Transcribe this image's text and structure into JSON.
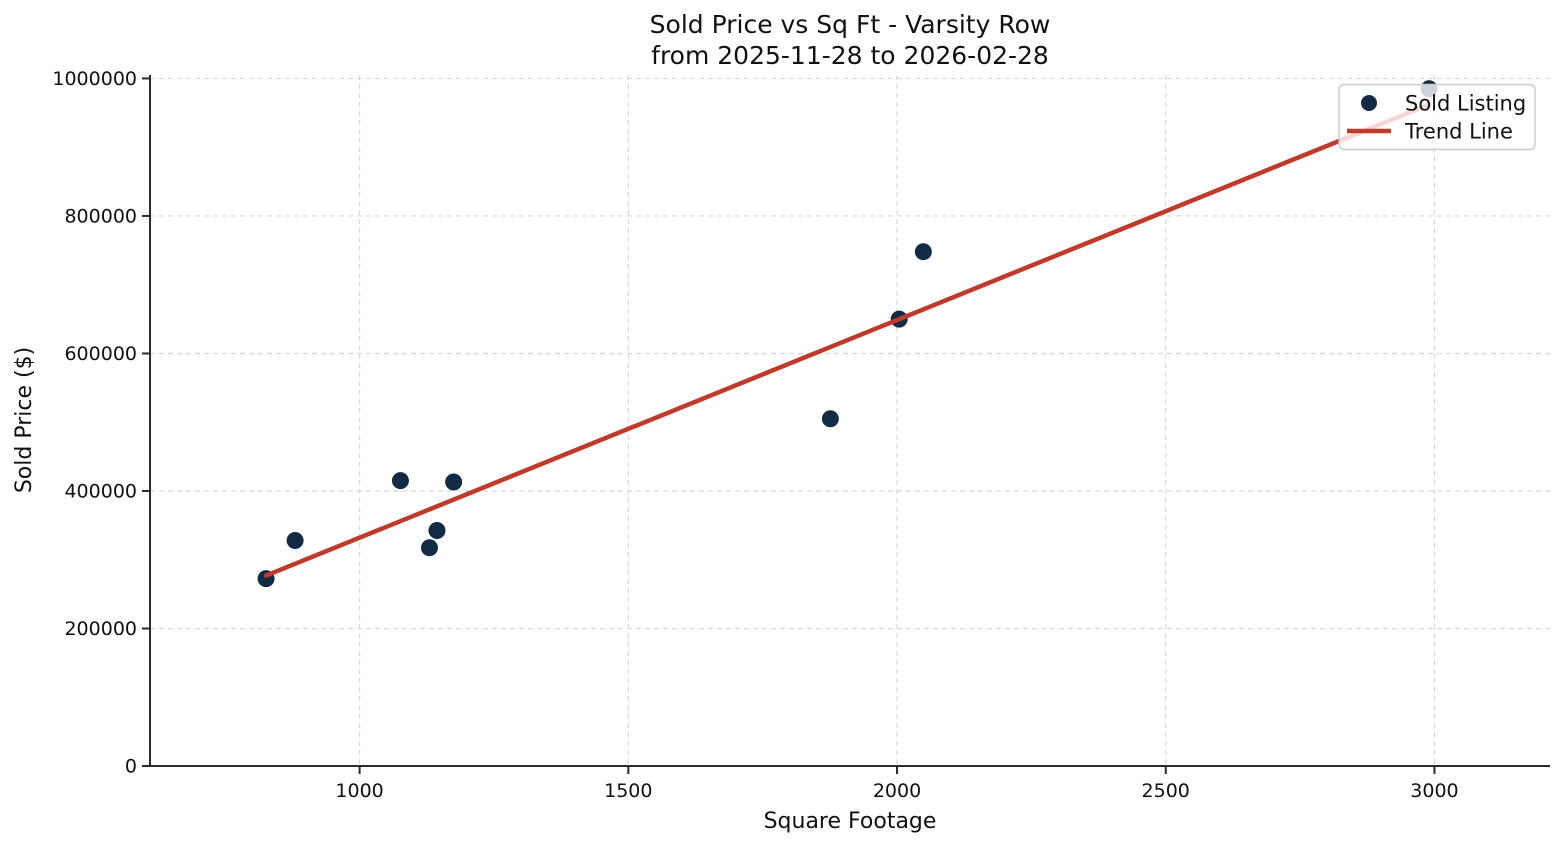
{
  "title": {
    "line1": "Sold Price vs Sq Ft - Varsity Row",
    "line2": "from 2025-11-28 to 2026-02-28"
  },
  "chart_data": {
    "type": "scatter",
    "title": "Sold Price vs Sq Ft - Varsity Row\nfrom 2025-11-28 to 2026-02-28",
    "xlabel": "Square Footage",
    "ylabel": "Sold Price ($)",
    "xlim": [
      610,
      3215
    ],
    "ylim": [
      0,
      1005000
    ],
    "x_ticks": [
      1000,
      1500,
      2000,
      2500,
      3000
    ],
    "y_ticks": [
      0,
      200000,
      400000,
      600000,
      800000,
      1000000
    ],
    "grid": true,
    "legend_position": "upper right",
    "series": [
      {
        "name": "Sold Listing",
        "type": "scatter",
        "color": "#122b45",
        "points": [
          [
            826,
            272500
          ],
          [
            880,
            328000
          ],
          [
            1076,
            415000
          ],
          [
            1130,
            317500
          ],
          [
            1144,
            342500
          ],
          [
            1175,
            413000
          ],
          [
            1876,
            505000
          ],
          [
            2004,
            650000
          ],
          [
            2049,
            748000
          ],
          [
            2990,
            985000
          ]
        ]
      },
      {
        "name": "Trend Line",
        "type": "line",
        "color": "#c03a2b",
        "points": [
          [
            826,
            277000
          ],
          [
            2990,
            962000
          ]
        ]
      }
    ]
  },
  "colors": {
    "scatter": "#122b45",
    "trend": "#c03a2b",
    "grid": "#d8d8d8",
    "spine": "#2b2b2b",
    "text": "#111111",
    "legend_border": "#cccccc",
    "legend_bg_opacity": "0.8"
  }
}
